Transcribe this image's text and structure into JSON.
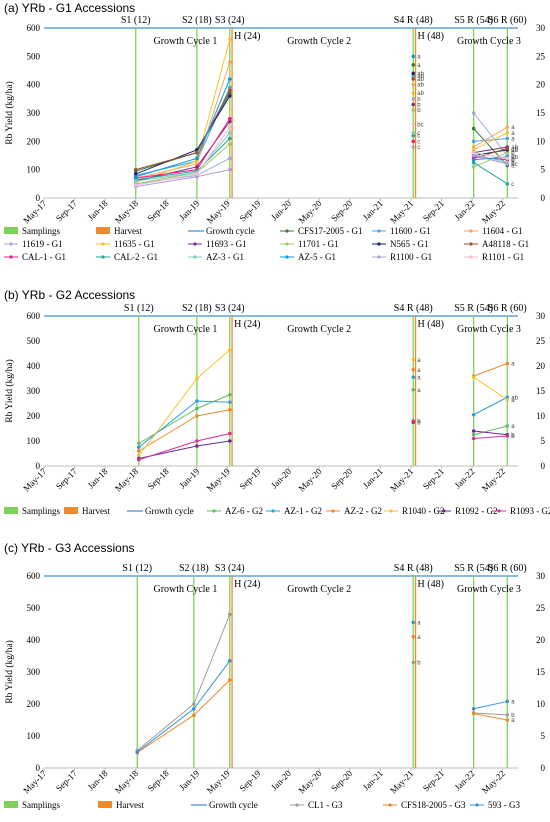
{
  "figure": {
    "colors": {
      "samplings": "#7dd35a",
      "harvest": "#f08a2c",
      "growth_cycle": "#5aa6d6"
    }
  },
  "chart_data": [
    {
      "type": "line",
      "panel_title": "(a) YRb - G1 Accessions",
      "ylabel": "Rb Yield (kg/ha)",
      "ylim": [
        0,
        600
      ],
      "yticks": [
        0,
        100,
        200,
        300,
        400,
        500,
        600
      ],
      "y2lim": [
        0,
        30
      ],
      "y2ticks": [
        0,
        5,
        10,
        15,
        20,
        25,
        30
      ],
      "x_ticks": [
        "May-17",
        "Sep-17",
        "Jan-18",
        "May-18",
        "Sep-18",
        "Jan-19",
        "May-19",
        "Sep-19",
        "Jan-20",
        "May-20",
        "Sep-20",
        "Jan-21",
        "May-21",
        "Sep-21",
        "Jan-22",
        "May-22"
      ],
      "x_tick_months": [
        0,
        4,
        8,
        12,
        16,
        20,
        24,
        28,
        32,
        36,
        40,
        44,
        48,
        52,
        56,
        60
      ],
      "samplings": [
        {
          "label": "S1 (12)",
          "month": 12
        },
        {
          "label": "S2 (18)",
          "month": 20
        },
        {
          "label": "S3 (24)",
          "month": 24.3
        },
        {
          "label": "S4 R (48)",
          "month": 48.3
        },
        {
          "label": "S5 R (54)",
          "month": 56.2
        },
        {
          "label": "S6 R (60)",
          "month": 60.6
        }
      ],
      "harvests": [
        {
          "label": "H (24)",
          "month": 24.6
        },
        {
          "label": "H (48)",
          "month": 48.6
        }
      ],
      "cycle_labels": [
        "Growth Cycle 1",
        "Growth Cycle 2",
        "Growth Cycle 3"
      ],
      "growth_line_y": 600,
      "x_months": [
        12,
        20,
        24.3
      ],
      "x3_months": [
        56.2,
        60.6
      ],
      "series": [
        {
          "name": "CFS17-2005 - G1",
          "color": "#2e7d32",
          "values": [
            95,
            160,
            370
          ],
          "s4": 470,
          "s4_sig": "a",
          "cycle3": [
            245,
            115
          ],
          "sig": "a"
        },
        {
          "name": "11600 - G1",
          "color": "#4fa3e0",
          "values": [
            80,
            130,
            390
          ],
          "s4": 430,
          "s4_sig": "ab",
          "cycle3": [
            200,
            210
          ],
          "sig": "a"
        },
        {
          "name": "11604 - G1",
          "color": "#f4a460",
          "values": [
            70,
            120,
            480
          ],
          "s4": 400,
          "s4_sig": "ab",
          "cycle3": [
            180,
            250
          ],
          "sig": "a"
        },
        {
          "name": "11619 - G1",
          "color": "#a9a9d9",
          "values": [
            50,
            80,
            140
          ],
          "s4": 350,
          "s4_sig": "b",
          "cycle3": [
            300,
            150
          ],
          "sig": "b"
        },
        {
          "name": "11635 - G1",
          "color": "#f7c32e",
          "values": [
            55,
            130,
            560
          ],
          "s4": 370,
          "s4_sig": "ab",
          "cycle3": [
            170,
            230
          ],
          "sig": "a"
        },
        {
          "name": "11693 - G1",
          "color": "#7b2d8b",
          "values": [
            60,
            110,
            270
          ],
          "s4": 330,
          "s4_sig": "b",
          "cycle3": [
            160,
            180
          ],
          "sig": "ab"
        },
        {
          "name": "11701 - G1",
          "color": "#9ccc65",
          "values": [
            50,
            90,
            190
          ],
          "s4": 310,
          "s4_sig": "b",
          "cycle3": [
            110,
            160
          ],
          "sig": "b"
        },
        {
          "name": "N565 - G1",
          "color": "#1a237e",
          "values": [
            85,
            170,
            360
          ],
          "s4": 440,
          "s4_sig": "ab",
          "cycle3": [
            150,
            170
          ],
          "sig": "ab"
        },
        {
          "name": "A48118 - G1",
          "color": "#a0522d",
          "values": [
            100,
            160,
            380
          ],
          "s4": 420,
          "s4_sig": "ab",
          "cycle3": [
            140,
            175
          ],
          "sig": "ab"
        },
        {
          "name": "CAL-1 - G1",
          "color": "#e91e8c",
          "values": [
            70,
            100,
            280
          ],
          "s4": 200,
          "s4_sig": "c",
          "cycle3": [
            145,
            135
          ],
          "sig": "b"
        },
        {
          "name": "CAL-2 - G1",
          "color": "#26a69a",
          "values": [
            65,
            95,
            210
          ],
          "s4": 220,
          "s4_sig": "c",
          "cycle3": [
            125,
            50
          ],
          "sig": "c"
        },
        {
          "name": "AZ-3 - G1",
          "color": "#80cbc4",
          "values": [
            60,
            90,
            230
          ],
          "s4": 230,
          "s4_sig": "c",
          "cycle3": [
            155,
            125
          ],
          "sig": "b"
        },
        {
          "name": "AZ-5 - G1",
          "color": "#039be5",
          "values": [
            75,
            140,
            420
          ],
          "s4": 500,
          "s4_sig": "a",
          "cycle3": [
            135,
            145
          ],
          "sig": "ab"
        },
        {
          "name": "R1100 - G1",
          "color": "#b39ddb",
          "values": [
            40,
            75,
            100
          ],
          "s4": 180,
          "s4_sig": "c",
          "cycle3": [
            150,
            120
          ],
          "sig": "bc"
        },
        {
          "name": "R1101 - G1",
          "color": "#f8bbd0",
          "values": [
            45,
            85,
            250
          ],
          "s4": 260,
          "s4_sig": "bc",
          "cycle3": [
            160,
            140
          ],
          "sig": "b"
        }
      ],
      "legend": [
        {
          "label": "Samplings",
          "kind": "samp"
        },
        {
          "label": "Harvest",
          "kind": "harv"
        },
        {
          "label": "Growth cycle",
          "kind": "gc"
        },
        {
          "label": "CFS17-2005 - G1",
          "kind": "series",
          "i": 0
        },
        {
          "label": "11600 - G1",
          "kind": "series",
          "i": 1
        },
        {
          "label": "11604 - G1",
          "kind": "series",
          "i": 2
        },
        {
          "label": "11619 - G1",
          "kind": "series",
          "i": 3
        },
        {
          "label": "11635 - G1",
          "kind": "series",
          "i": 4
        },
        {
          "label": "11693 - G1",
          "kind": "series",
          "i": 5
        },
        {
          "label": "11701 - G1",
          "kind": "series",
          "i": 6
        },
        {
          "label": "N565 - G1",
          "kind": "series",
          "i": 7
        },
        {
          "label": "A48118 - G1",
          "kind": "series",
          "i": 8
        },
        {
          "label": "CAL-1 - G1",
          "kind": "series",
          "i": 9
        },
        {
          "label": "CAL-2 - G1",
          "kind": "series",
          "i": 10
        },
        {
          "label": "AZ-3 - G1",
          "kind": "series",
          "i": 11
        },
        {
          "label": "AZ-5 - G1",
          "kind": "series",
          "i": 12
        },
        {
          "label": "R1100 - G1",
          "kind": "series",
          "i": 13
        },
        {
          "label": "R1101 - G1",
          "kind": "series",
          "i": 14
        }
      ]
    },
    {
      "type": "line",
      "panel_title": "(b) YRb - G2 Accessions",
      "ylabel": "Rb Yield (kg/ha)",
      "ylim": [
        0,
        600
      ],
      "yticks": [
        0,
        100,
        200,
        300,
        400,
        500,
        600
      ],
      "y2lim": [
        0,
        30
      ],
      "y2ticks": [
        0,
        5,
        10,
        15,
        20,
        25,
        30
      ],
      "x_ticks": [
        "May-17",
        "Sep-17",
        "Jan-18",
        "May-18",
        "Sep-18",
        "Jan-19",
        "May-19",
        "Sep-19",
        "Jan-20",
        "May-20",
        "Sep-20",
        "Jan-21",
        "May-21",
        "Sep-21",
        "Jan-22",
        "May-22"
      ],
      "x_tick_months": [
        0,
        4,
        8,
        12,
        16,
        20,
        24,
        28,
        32,
        36,
        40,
        44,
        48,
        52,
        56,
        60
      ],
      "samplings": [
        {
          "label": "S1 (12)",
          "month": 12.4
        },
        {
          "label": "S2 (18)",
          "month": 20
        },
        {
          "label": "S3 (24)",
          "month": 24.3
        },
        {
          "label": "S4 R (48)",
          "month": 48.3
        },
        {
          "label": "S5 R (54)",
          "month": 56.2
        },
        {
          "label": "S6 R (60)",
          "month": 60.6
        }
      ],
      "harvests": [
        {
          "label": "H (24)",
          "month": 24.6
        },
        {
          "label": "H (48)",
          "month": 48.6
        }
      ],
      "cycle_labels": [
        "Growth Cycle 1",
        "Growth Cycle 2",
        "Growth Cycle 3"
      ],
      "growth_line_y": 600,
      "x_months": [
        12.4,
        20,
        24.3
      ],
      "x3_months": [
        56.2,
        60.6
      ],
      "series": [
        {
          "name": "AZ-6 - G2",
          "color": "#66bb6a",
          "values": [
            90,
            230,
            285
          ],
          "s4": 305,
          "s4_sig": "a",
          "cycle3": [
            125,
            160
          ],
          "sig": "a"
        },
        {
          "name": "AZ-1 - G2",
          "color": "#29a3d9",
          "values": [
            75,
            260,
            255
          ],
          "s4": 355,
          "s4_sig": "a",
          "cycle3": [
            205,
            275
          ],
          "sig": "ab"
        },
        {
          "name": "AZ-2 - G2",
          "color": "#ef8a2d",
          "values": [
            60,
            200,
            225
          ],
          "s4": 385,
          "s4_sig": "a",
          "cycle3": [
            360,
            410
          ],
          "sig": "a"
        },
        {
          "name": "R1040 - G2",
          "color": "#f4c430",
          "values": [
            40,
            350,
            465
          ],
          "s4": 425,
          "s4_sig": "a",
          "cycle3": [
            355,
            265
          ],
          "sig": "a"
        },
        {
          "name": "R1092 - G2",
          "color": "#6a2c91",
          "values": [
            30,
            80,
            100
          ],
          "s4": 175,
          "s4_sig": "b",
          "cycle3": [
            140,
            125
          ],
          "sig": "b"
        },
        {
          "name": "R1093 - G2",
          "color": "#d6339c",
          "values": [
            25,
            100,
            130
          ],
          "s4": 180,
          "s4_sig": "b",
          "cycle3": [
            110,
            120
          ],
          "sig": "b"
        }
      ],
      "legend": [
        {
          "label": "Samplings",
          "kind": "samp"
        },
        {
          "label": "Harvest",
          "kind": "harv"
        },
        {
          "label": "Growth cycle",
          "kind": "gc"
        },
        {
          "label": "AZ-6 - G2",
          "kind": "series",
          "i": 0
        },
        {
          "label": "AZ-1 - G2",
          "kind": "series",
          "i": 1
        },
        {
          "label": "AZ-2 - G2",
          "kind": "series",
          "i": 2
        },
        {
          "label": "R1040 - G2",
          "kind": "series",
          "i": 3
        },
        {
          "label": "R1092 - G2",
          "kind": "series",
          "i": 4
        },
        {
          "label": "R1093 - G2",
          "kind": "series",
          "i": 5
        }
      ]
    },
    {
      "type": "line",
      "panel_title": "(c) YRb - G3 Accessions",
      "ylabel": "Rb Yield (kg/ha)",
      "ylim": [
        0,
        600
      ],
      "yticks": [
        0,
        100,
        200,
        300,
        400,
        500,
        600
      ],
      "y2lim": [
        0,
        30
      ],
      "y2ticks": [
        0,
        5,
        10,
        15,
        20,
        25,
        30
      ],
      "x_ticks": [
        "May-17",
        "Sep-17",
        "Jan-18",
        "May-18",
        "Sep-18",
        "Jan-19",
        "May-19",
        "Sep-19",
        "Jan-20",
        "May-20",
        "Sep-20",
        "Jan-21",
        "May-21",
        "Sep-21",
        "Jan-22",
        "May-22"
      ],
      "x_tick_months": [
        0,
        4,
        8,
        12,
        16,
        20,
        24,
        28,
        32,
        36,
        40,
        44,
        48,
        52,
        56,
        60
      ],
      "samplings": [
        {
          "label": "S1 (12)",
          "month": 12.2
        },
        {
          "label": "S2 (18)",
          "month": 19.6
        },
        {
          "label": "S3 (24)",
          "month": 24.3
        },
        {
          "label": "S4 R (48)",
          "month": 48.3
        },
        {
          "label": "S5 R (54)",
          "month": 56.2
        },
        {
          "label": "S6 R (60)",
          "month": 60.6
        }
      ],
      "harvests": [
        {
          "label": "H (24)",
          "month": 24.6
        },
        {
          "label": "H (48)",
          "month": 48.6
        }
      ],
      "cycle_labels": [
        "Growth Cycle 1",
        "Growth Cycle 2",
        "Growth Cycle 3"
      ],
      "growth_line_y": 600,
      "x_months": [
        12.2,
        19.6,
        24.3
      ],
      "x3_months": [
        56.2,
        60.6
      ],
      "series": [
        {
          "name": "CL1 - G3",
          "color": "#9e9e9e",
          "values": [
            55,
            200,
            480
          ],
          "s4": 330,
          "s4_sig": "b",
          "cycle3": [
            172,
            166
          ],
          "sig": "b"
        },
        {
          "name": "CFS18-2005 - G3",
          "color": "#ee8a2c",
          "values": [
            48,
            165,
            275
          ],
          "s4": 410,
          "s4_sig": "a",
          "cycle3": [
            170,
            150
          ],
          "sig": "a"
        },
        {
          "name": "593 - G3",
          "color": "#3c8fd6",
          "values": [
            50,
            185,
            335
          ],
          "s4": 455,
          "s4_sig": "a",
          "cycle3": [
            185,
            208
          ],
          "sig": "a"
        }
      ],
      "legend": [
        {
          "label": "Samplings",
          "kind": "samp"
        },
        {
          "label": "Harvest",
          "kind": "harv"
        },
        {
          "label": "Growth cycle",
          "kind": "gc"
        },
        {
          "label": "CL1 - G3",
          "kind": "series",
          "i": 0
        },
        {
          "label": "CFS18-2005 - G3",
          "kind": "series",
          "i": 1
        },
        {
          "label": "593 - G3",
          "kind": "series",
          "i": 2
        }
      ]
    }
  ]
}
